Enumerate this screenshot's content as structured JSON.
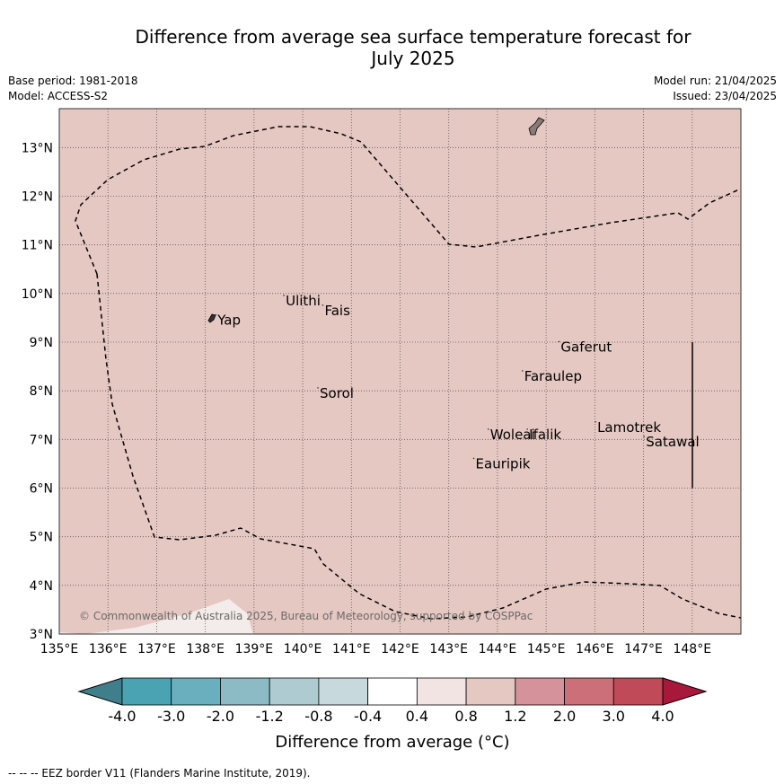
{
  "title_line1": "Difference from average sea surface temperature forecast for",
  "title_line2": "July 2025",
  "base_period": "Base period: 1981-2018",
  "model": "Model: ACCESS-S2",
  "model_run": "Model run: 21/04/2025",
  "issued": "Issued: 23/04/2025",
  "copyright": "© Commonwealth of Australia 2025, Bureau of Meteorology, supported by COSPPac",
  "footnote": "--  --  -- EEZ border V11 (Flanders Marine Institute, 2019).",
  "map": {
    "lon_range": [
      135,
      149
    ],
    "lat_range": [
      3,
      13.8
    ],
    "background_color": "#e6c8c3",
    "lon_ticks": [
      "135°E",
      "136°E",
      "137°E",
      "138°E",
      "139°E",
      "140°E",
      "141°E",
      "142°E",
      "143°E",
      "144°E",
      "145°E",
      "146°E",
      "147°E",
      "148°E"
    ],
    "lat_ticks": [
      "3°N",
      "4°N",
      "5°N",
      "6°N",
      "7°N",
      "8°N",
      "9°N",
      "10°N",
      "11°N",
      "12°N",
      "13°N"
    ],
    "places": [
      {
        "name": "Yap",
        "lon": 138.25,
        "lat": 9.45
      },
      {
        "name": "Ulithi",
        "lon": 139.65,
        "lat": 9.85
      },
      {
        "name": "Fais",
        "lon": 140.45,
        "lat": 9.65
      },
      {
        "name": "Gaferut",
        "lon": 145.3,
        "lat": 8.9
      },
      {
        "name": "Faraulep",
        "lon": 144.55,
        "lat": 8.3
      },
      {
        "name": "Sorol",
        "lon": 140.35,
        "lat": 7.95
      },
      {
        "name": "Lamotrek",
        "lon": 146.05,
        "lat": 7.25
      },
      {
        "name": "Woleai",
        "lon": 143.85,
        "lat": 7.1
      },
      {
        "name": "Ifalik",
        "lon": 144.65,
        "lat": 7.1
      },
      {
        "name": "Satawal",
        "lon": 147.05,
        "lat": 6.95
      },
      {
        "name": "Eauripik",
        "lon": 143.55,
        "lat": 6.5
      }
    ]
  },
  "colorbar": {
    "title": "Difference from average (°C)",
    "labels": [
      "-4.0",
      "-3.0",
      "-2.0",
      "-1.2",
      "-0.8",
      "-0.4",
      "0.4",
      "0.8",
      "1.2",
      "2.0",
      "3.0",
      "4.0"
    ],
    "colors": [
      "#3f7f8c",
      "#4aa3b3",
      "#6aafbd",
      "#8cbac5",
      "#adcbd1",
      "#c8d9dd",
      "#ffffff",
      "#f1e4e2",
      "#e6c8c3",
      "#d5929a",
      "#cc6f79",
      "#c14a58",
      "#a8183b"
    ]
  }
}
